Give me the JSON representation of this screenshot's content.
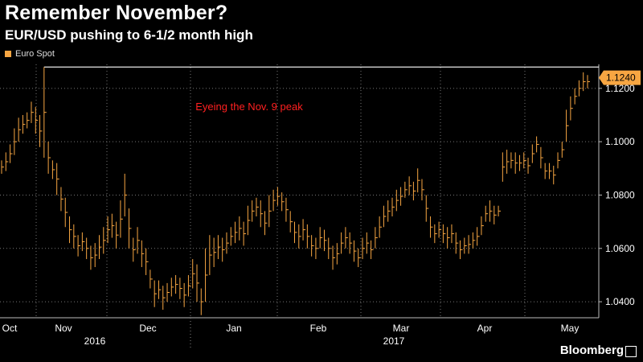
{
  "title": "Remember November?",
  "subtitle": "EUR/USD pushing to 6-1/2 month high",
  "brand": "Bloomberg",
  "chart_data": {
    "type": "line",
    "series": [
      {
        "name": "Euro Spot",
        "color": "#f7a642"
      }
    ],
    "y_ticks": [
      "1.0400",
      "1.0600",
      "1.0800",
      "1.1000",
      "1.1200"
    ],
    "ylim": [
      1.034,
      1.129
    ],
    "current_value_label": "1.1240",
    "current_value": 1.124,
    "reference_line": {
      "value": 1.128,
      "color": "#ffffff"
    },
    "annotation": {
      "text": "Eyeing the Nov. 9 peak",
      "color": "#ff2020"
    },
    "x_months": [
      "Oct",
      "Nov",
      "Dec",
      "Jan",
      "Feb",
      "Mar",
      "Apr",
      "May"
    ],
    "x_years": [
      "2016",
      "2017"
    ],
    "data": [
      [
        1.088,
        1.093
      ],
      [
        1.089,
        1.096
      ],
      [
        1.092,
        1.099
      ],
      [
        1.095,
        1.105
      ],
      [
        1.1,
        1.109
      ],
      [
        1.103,
        1.11
      ],
      [
        1.105,
        1.111
      ],
      [
        1.107,
        1.115
      ],
      [
        1.103,
        1.113
      ],
      [
        1.098,
        1.11
      ],
      [
        1.094,
        1.128
      ],
      [
        1.088,
        1.1
      ],
      [
        1.086,
        1.093
      ],
      [
        1.08,
        1.092
      ],
      [
        1.074,
        1.083
      ],
      [
        1.068,
        1.079
      ],
      [
        1.062,
        1.072
      ],
      [
        1.06,
        1.069
      ],
      [
        1.057,
        1.065
      ],
      [
        1.059,
        1.066
      ],
      [
        1.056,
        1.064
      ],
      [
        1.052,
        1.061
      ],
      [
        1.053,
        1.062
      ],
      [
        1.056,
        1.065
      ],
      [
        1.058,
        1.068
      ],
      [
        1.062,
        1.072
      ],
      [
        1.064,
        1.073
      ],
      [
        1.06,
        1.07
      ],
      [
        1.064,
        1.078
      ],
      [
        1.072,
        1.088
      ],
      [
        1.06,
        1.075
      ],
      [
        1.055,
        1.064
      ],
      [
        1.058,
        1.068
      ],
      [
        1.053,
        1.063
      ],
      [
        1.05,
        1.06
      ],
      [
        1.045,
        1.052
      ],
      [
        1.038,
        1.048
      ],
      [
        1.041,
        1.048
      ],
      [
        1.037,
        1.046
      ],
      [
        1.04,
        1.047
      ],
      [
        1.042,
        1.049
      ],
      [
        1.043,
        1.05
      ],
      [
        1.041,
        1.049
      ],
      [
        1.038,
        1.047
      ],
      [
        1.042,
        1.05
      ],
      [
        1.045,
        1.056
      ],
      [
        1.04,
        1.054
      ],
      [
        1.035,
        1.045
      ],
      [
        1.04,
        1.06
      ],
      [
        1.05,
        1.065
      ],
      [
        1.053,
        1.064
      ],
      [
        1.056,
        1.065
      ],
      [
        1.055,
        1.064
      ],
      [
        1.058,
        1.066
      ],
      [
        1.061,
        1.068
      ],
      [
        1.062,
        1.07
      ],
      [
        1.063,
        1.072
      ],
      [
        1.061,
        1.07
      ],
      [
        1.065,
        1.076
      ],
      [
        1.07,
        1.078
      ],
      [
        1.072,
        1.079
      ],
      [
        1.068,
        1.078
      ],
      [
        1.065,
        1.074
      ],
      [
        1.068,
        1.08
      ],
      [
        1.074,
        1.082
      ],
      [
        1.076,
        1.083
      ],
      [
        1.074,
        1.081
      ],
      [
        1.07,
        1.079
      ],
      [
        1.066,
        1.074
      ],
      [
        1.062,
        1.07
      ],
      [
        1.06,
        1.069
      ],
      [
        1.063,
        1.071
      ],
      [
        1.06,
        1.069
      ],
      [
        1.057,
        1.065
      ],
      [
        1.056,
        1.064
      ],
      [
        1.06,
        1.068
      ],
      [
        1.059,
        1.067
      ],
      [
        1.056,
        1.064
      ],
      [
        1.052,
        1.061
      ],
      [
        1.054,
        1.062
      ],
      [
        1.058,
        1.066
      ],
      [
        1.06,
        1.068
      ],
      [
        1.058,
        1.066
      ],
      [
        1.055,
        1.063
      ],
      [
        1.053,
        1.06
      ],
      [
        1.056,
        1.064
      ],
      [
        1.058,
        1.066
      ],
      [
        1.056,
        1.063
      ],
      [
        1.06,
        1.068
      ],
      [
        1.064,
        1.072
      ],
      [
        1.068,
        1.076
      ],
      [
        1.07,
        1.078
      ],
      [
        1.072,
        1.079
      ],
      [
        1.074,
        1.082
      ],
      [
        1.076,
        1.083
      ],
      [
        1.079,
        1.085
      ],
      [
        1.08,
        1.087
      ],
      [
        1.078,
        1.085
      ],
      [
        1.081,
        1.09
      ],
      [
        1.078,
        1.086
      ],
      [
        1.07,
        1.08
      ],
      [
        1.064,
        1.072
      ],
      [
        1.062,
        1.069
      ],
      [
        1.064,
        1.07
      ],
      [
        1.062,
        1.069
      ],
      [
        1.06,
        1.068
      ],
      [
        1.062,
        1.069
      ],
      [
        1.058,
        1.066
      ],
      [
        1.056,
        1.063
      ],
      [
        1.058,
        1.064
      ],
      [
        1.058,
        1.065
      ],
      [
        1.06,
        1.066
      ],
      [
        1.061,
        1.068
      ],
      [
        1.065,
        1.072
      ],
      [
        1.07,
        1.076
      ],
      [
        1.07,
        1.078
      ],
      [
        1.069,
        1.076
      ],
      [
        1.072,
        1.076
      ],
      [
        1.085,
        1.096
      ],
      [
        1.088,
        1.097
      ],
      [
        1.09,
        1.096
      ],
      [
        1.088,
        1.096
      ],
      [
        1.089,
        1.095
      ],
      [
        1.09,
        1.096
      ],
      [
        1.088,
        1.094
      ],
      [
        1.092,
        1.099
      ],
      [
        1.096,
        1.102
      ],
      [
        1.09,
        1.098
      ],
      [
        1.086,
        1.092
      ],
      [
        1.086,
        1.092
      ],
      [
        1.084,
        1.091
      ],
      [
        1.09,
        1.096
      ],
      [
        1.094,
        1.1
      ],
      [
        1.1,
        1.112
      ],
      [
        1.108,
        1.117
      ],
      [
        1.114,
        1.12
      ],
      [
        1.117,
        1.123
      ],
      [
        1.119,
        1.126
      ],
      [
        1.12,
        1.125
      ]
    ]
  }
}
